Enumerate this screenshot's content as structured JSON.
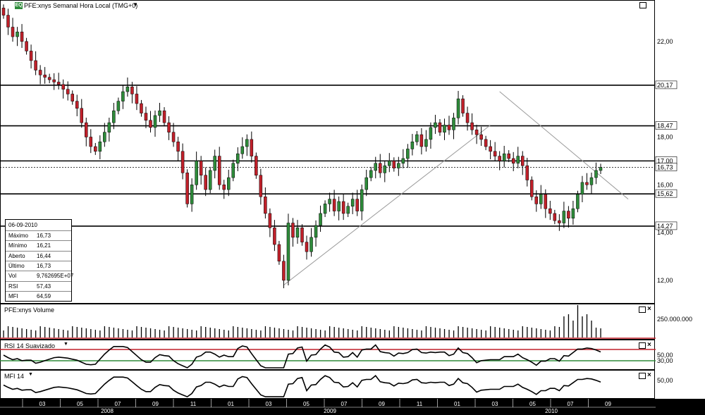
{
  "header": {
    "badge": "EQ",
    "title": "PFE:xnys Semanal Hora Local (TMG+0)",
    "dropdown_icon": "triangle-down-icon"
  },
  "info_box": {
    "date": "06-09-2010",
    "rows": [
      {
        "label": "Máximo",
        "value": "16,73"
      },
      {
        "label": "Mínimo",
        "value": "16,21"
      },
      {
        "label": "Aberto",
        "value": "16,44"
      },
      {
        "label": "Último",
        "value": "16,73"
      },
      {
        "label": "Vol",
        "value": "9,762695E+07"
      },
      {
        "label": "RSI",
        "value": "57,43"
      },
      {
        "label": "MFI",
        "value": "64,59"
      }
    ]
  },
  "panels": {
    "volume_title": "PFE:xnys Volume",
    "rsi_title": "RSI 14 Suavizado",
    "mfi_title": "MFI 14"
  },
  "chart_data": [
    {
      "type": "candlestick",
      "title": "PFE:xnys Semanal Hora Local (TMG+0)",
      "ylim": [
        11.2,
        23.5
      ],
      "y_ticks": [
        "22,00",
        "20,17",
        "18,47",
        "18,00",
        "17,00",
        "16,73",
        "16,00",
        "15,62",
        "14,27",
        "14,00",
        "12,00"
      ],
      "horizontal_levels": [
        20.17,
        18.47,
        17.0,
        15.62,
        14.27
      ],
      "last_price_line": 16.73,
      "colors": {
        "up": "#2e8b3a",
        "down": "#c0202a"
      },
      "candles_close": [
        23.1,
        22.6,
        22.2,
        22.4,
        22.0,
        21.6,
        21.2,
        20.8,
        20.6,
        20.5,
        20.4,
        20.3,
        20.2,
        20.0,
        19.8,
        19.5,
        19.2,
        18.6,
        18.0,
        17.6,
        17.4,
        17.8,
        18.2,
        18.6,
        19.1,
        19.5,
        19.9,
        20.1,
        19.8,
        19.4,
        19.0,
        18.7,
        18.4,
        18.9,
        19.1,
        18.6,
        18.2,
        17.8,
        17.4,
        16.5,
        15.2,
        16.0,
        17.0,
        16.4,
        15.8,
        16.6,
        17.2,
        16.0,
        15.8,
        16.3,
        16.9,
        17.3,
        17.6,
        17.9,
        17.2,
        16.4,
        15.5,
        14.8,
        14.2,
        13.5,
        12.8,
        12.0,
        14.4,
        13.8,
        14.2,
        13.6,
        13.2,
        13.8,
        14.3,
        14.8,
        15.2,
        15.4,
        14.9,
        15.3,
        14.8,
        15.1,
        15.4,
        14.9,
        15.8,
        16.3,
        16.6,
        16.9,
        16.5,
        16.8,
        17.0,
        16.7,
        16.9,
        17.1,
        17.5,
        17.8,
        18.1,
        17.6,
        17.9,
        18.4,
        18.6,
        18.2,
        18.5,
        18.3,
        18.8,
        19.6,
        19.0,
        18.6,
        18.3,
        18.1,
        17.9,
        17.6,
        17.4,
        17.2,
        17.0,
        17.3,
        17.1,
        16.9,
        17.2,
        16.8,
        16.2,
        15.5,
        15.2,
        15.6,
        15.0,
        14.8,
        14.5,
        14.4,
        14.9,
        14.6,
        15.0,
        15.6,
        16.1,
        16.0,
        16.3,
        16.6,
        16.73
      ],
      "trendlines": [
        {
          "from": [
            61,
            11.8
          ],
          "to": [
            106,
            18.5
          ]
        },
        {
          "from": [
            108,
            19.9
          ],
          "to": [
            136,
            15.4
          ]
        }
      ],
      "x_ticks": [
        "03",
        "05",
        "07",
        "09",
        "11",
        "01",
        "03",
        "05",
        "07",
        "09",
        "11",
        "01",
        "03",
        "05",
        "07",
        "09"
      ],
      "x_years": [
        "2008",
        "2009",
        "2010"
      ]
    },
    {
      "type": "bar",
      "title": "PFE:xnys Volume",
      "y_ticks": [
        "250.000.000"
      ],
      "note": "weekly volume bars, spike in mid-2010"
    },
    {
      "type": "line",
      "title": "RSI 14 Suavizado",
      "y_ticks": [
        "50,00",
        "30,00"
      ],
      "levels": [
        70,
        30
      ],
      "level_colors": [
        "#c0202a",
        "#2e8b3a"
      ]
    },
    {
      "type": "line",
      "title": "MFI 14",
      "y_ticks": [
        "50,00"
      ]
    }
  ]
}
